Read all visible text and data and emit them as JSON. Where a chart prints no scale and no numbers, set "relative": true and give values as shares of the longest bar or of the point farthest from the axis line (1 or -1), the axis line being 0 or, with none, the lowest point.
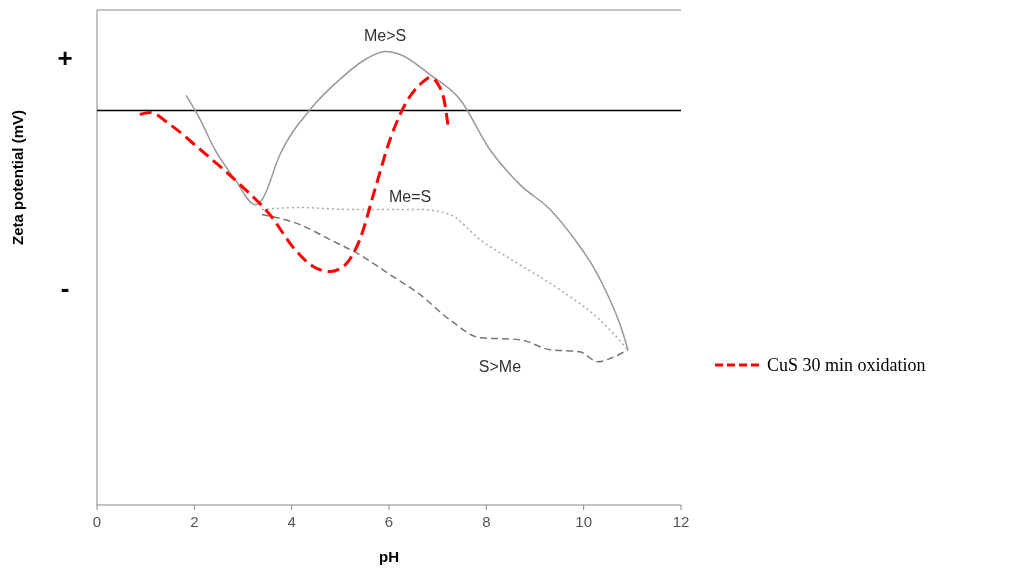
{
  "chart_data": {
    "type": "line",
    "relative": true,
    "xlabel": "pH",
    "ylabel": "Zeta potential (mV)",
    "xlim": [
      0,
      12
    ],
    "xticks": [
      0,
      2,
      4,
      6,
      8,
      10,
      12
    ],
    "legend": "right",
    "grid": false,
    "ref_lines": [
      {
        "axis": "y",
        "value": 0,
        "color": "#000000"
      }
    ],
    "annotations": [
      "+",
      "-"
    ],
    "series": [
      {
        "name": "Me>S",
        "color": "#999999",
        "line_style": "solid",
        "x": [
          1.83,
          2.12,
          2.42,
          2.84,
          3.25,
          3.39,
          3.76,
          4.38,
          4.99,
          5.51,
          5.92,
          6.23,
          6.84,
          7.46,
          8.07,
          8.69,
          9.31,
          9.82,
          10.23,
          10.54,
          10.75,
          10.91
        ],
        "values": [
          0.06,
          -0.036,
          -0.155,
          -0.275,
          -0.375,
          -0.355,
          -0.175,
          0.004,
          0.124,
          0.203,
          0.235,
          0.223,
          0.143,
          0.044,
          -0.155,
          -0.295,
          -0.394,
          -0.514,
          -0.633,
          -0.753,
          -0.853,
          -0.952
        ]
      },
      {
        "name": "Me=S",
        "color": "#aaaaaa",
        "line_style": "dotted",
        "x": [
          3.39,
          4.17,
          5.2,
          6.64,
          7.25,
          7.87,
          8.69,
          9.51,
          10.33,
          10.91
        ],
        "values": [
          -0.394,
          -0.386,
          -0.394,
          -0.394,
          -0.414,
          -0.514,
          -0.614,
          -0.713,
          -0.833,
          -0.952
        ]
      },
      {
        "name": "S>Me",
        "color": "#777777",
        "line_style": "dashed",
        "x": [
          3.39,
          4.17,
          4.79,
          5.4,
          6.02,
          6.64,
          7.25,
          7.87,
          8.69,
          9.31,
          9.92,
          10.29,
          10.58,
          10.91
        ],
        "values": [
          -0.414,
          -0.454,
          -0.514,
          -0.574,
          -0.653,
          -0.733,
          -0.833,
          -0.904,
          -0.912,
          -0.952,
          -0.96,
          -1.0,
          -0.984,
          -0.952
        ]
      },
      {
        "name": "CuS 30 min oxidation",
        "color": "#ff0000",
        "line_style": "dashed",
        "x": [
          0.88,
          1.09,
          1.5,
          2.12,
          2.94,
          3.55,
          4.07,
          4.48,
          4.79,
          5.1,
          5.4,
          5.71,
          6.02,
          6.33,
          6.64,
          6.84,
          7.01,
          7.15,
          7.21
        ],
        "values": [
          -0.016,
          -0.008,
          -0.056,
          -0.155,
          -0.295,
          -0.414,
          -0.554,
          -0.625,
          -0.641,
          -0.614,
          -0.514,
          -0.315,
          -0.116,
          0.024,
          0.104,
          0.131,
          0.104,
          0.024,
          -0.056
        ]
      }
    ]
  }
}
